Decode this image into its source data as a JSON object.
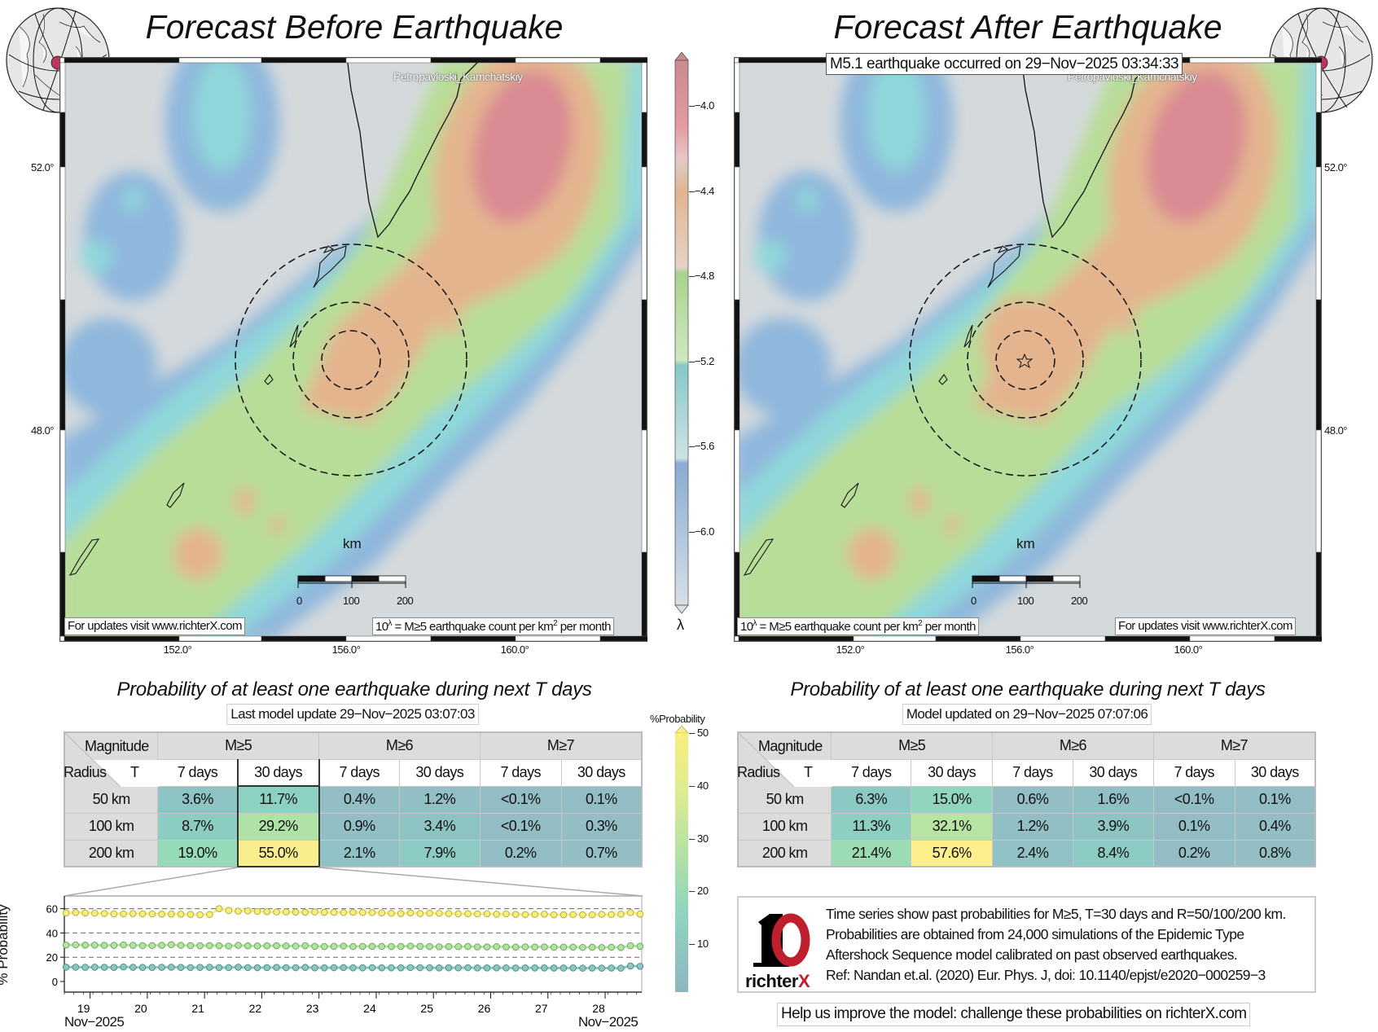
{
  "left_panel": {
    "title": "Forecast Before Earthquake",
    "city_label": "Petropavloski_Kamchatskiy",
    "lat_labels": [
      "52.0°",
      "48.0°"
    ],
    "lon_labels": [
      "152.0°",
      "156.0°",
      "160.0°"
    ],
    "scale": {
      "unit": "km",
      "ticks": [
        "0",
        "100",
        "200"
      ]
    },
    "footer": "For updates visit www.richterX.com",
    "legend_note": {
      "base": "10",
      "exp": "λ",
      "mid": " = M≥5 earthquake count per km",
      "sq": "2",
      "end": " per month"
    }
  },
  "right_panel": {
    "title": "Forecast After Earthquake",
    "event_note": "M5.1 earthquake occurred on 29−Nov−2025 03:34:33",
    "city_label": "Petropavloski_Kamchatskiy",
    "lat_labels": [
      "52.0°",
      "48.0°"
    ],
    "lon_labels": [
      "152.0°",
      "156.0°",
      "160.0°"
    ],
    "scale": {
      "unit": "km",
      "ticks": [
        "0",
        "100",
        "200"
      ]
    },
    "footer": "For updates visit www.richterX.com",
    "legend_note": {
      "base": "10",
      "exp": "λ",
      "mid": " = M≥5 earthquake count per km",
      "sq": "2",
      "end": " per month"
    }
  },
  "rate_colorbar": {
    "ticks": [
      "−4.0",
      "−4.4",
      "−4.8",
      "−5.2",
      "−5.6",
      "−6.0"
    ],
    "symbol": "λ"
  },
  "prob_colorbar": {
    "title": "%Probability",
    "ticks": [
      "50",
      "40",
      "30",
      "20",
      "10"
    ]
  },
  "left_table": {
    "title": "Probability of at least one earthquake during next T days",
    "update": "Last model update 29−Nov−2025 03:07:03",
    "corner_magnitude": "Magnitude",
    "corner_radius": "Radius",
    "corner_t": "T",
    "mag_headers": [
      "M≥5",
      "M≥6",
      "M≥7"
    ],
    "day_headers": [
      "7 days",
      "30 days",
      "7 days",
      "30 days",
      "7 days",
      "30 days"
    ],
    "rows": [
      {
        "radius": "50 km",
        "values": [
          "3.6%",
          "11.7%",
          "0.4%",
          "1.2%",
          "<0.1%",
          "0.1%"
        ]
      },
      {
        "radius": "100 km",
        "values": [
          "8.7%",
          "29.2%",
          "0.9%",
          "3.4%",
          "<0.1%",
          "0.3%"
        ]
      },
      {
        "radius": "200 km",
        "values": [
          "19.0%",
          "55.0%",
          "2.1%",
          "7.9%",
          "0.2%",
          "0.7%"
        ]
      }
    ]
  },
  "right_table": {
    "title": "Probability of at least one earthquake during next T days",
    "update": "Model updated on 29−Nov−2025 07:07:06",
    "corner_magnitude": "Magnitude",
    "corner_radius": "Radius",
    "corner_t": "T",
    "mag_headers": [
      "M≥5",
      "M≥6",
      "M≥7"
    ],
    "day_headers": [
      "7 days",
      "30 days",
      "7 days",
      "30 days",
      "7 days",
      "30 days"
    ],
    "rows": [
      {
        "radius": "50 km",
        "values": [
          "6.3%",
          "15.0%",
          "0.6%",
          "1.6%",
          "<0.1%",
          "0.1%"
        ]
      },
      {
        "radius": "100 km",
        "values": [
          "11.3%",
          "32.1%",
          "1.2%",
          "3.9%",
          "0.1%",
          "0.4%"
        ]
      },
      {
        "radius": "200 km",
        "values": [
          "21.4%",
          "57.6%",
          "2.4%",
          "8.4%",
          "0.2%",
          "0.8%"
        ]
      }
    ]
  },
  "chart_data": {
    "type": "line",
    "ylabel": "% Probability",
    "ylim": [
      -8,
      72
    ],
    "xlim": [
      18.55,
      28.64
    ],
    "yticks": [
      "0",
      "20",
      "40",
      "60"
    ],
    "xticks": [
      "19",
      "20",
      "21",
      "22",
      "23",
      "24",
      "25",
      "26",
      "27",
      "28"
    ],
    "month_left": "Nov−2025",
    "month_right": "Nov−2025",
    "grid": true,
    "series": [
      {
        "name": "R=200 km",
        "color": "#f6ee7e",
        "values": [
          56.5,
          56.8,
          56.5,
          56.3,
          56.0,
          55.8,
          55.7,
          56.0,
          55.8,
          55.7,
          55.6,
          55.6,
          55.5,
          55.3,
          55.0,
          55.2,
          60.0,
          58.5,
          58.0,
          58.2,
          57.8,
          57.5,
          57.3,
          57.3,
          57.2,
          57.0,
          57.3,
          57.0,
          57.0,
          56.8,
          57.0,
          56.8,
          56.8,
          56.5,
          56.2,
          56.0,
          56.5,
          56.0,
          56.3,
          56.2,
          56.0,
          55.8,
          55.8,
          55.7,
          55.8,
          55.5,
          55.7,
          55.3,
          55.2,
          55.3,
          55.5,
          55.0,
          55.0,
          55.2,
          55.0,
          55.0,
          55.3,
          55.2,
          55.5,
          56.8,
          55.5
        ]
      },
      {
        "name": "R=100 km",
        "color": "#b4e3a0",
        "values": [
          30.0,
          30.2,
          30.0,
          30.0,
          29.8,
          29.8,
          30.2,
          29.8,
          29.6,
          29.6,
          29.8,
          30.3,
          29.8,
          29.6,
          29.5,
          29.6,
          29.5,
          29.2,
          29.8,
          29.4,
          29.3,
          29.4,
          29.5,
          29.3,
          29.2,
          29.5,
          29.0,
          28.8,
          29.0,
          29.2,
          28.8,
          28.9,
          29.0,
          28.9,
          28.8,
          28.9,
          29.2,
          29.0,
          28.8,
          28.6,
          28.8,
          28.7,
          28.9,
          28.5,
          28.5,
          28.7,
          28.5,
          28.3,
          28.5,
          28.4,
          28.5,
          28.2,
          28.3,
          28.3,
          28.1,
          28.2,
          28.0,
          28.2,
          28.0,
          29.5,
          29.0
        ]
      },
      {
        "name": "R=50 km",
        "color": "#8cc8c0",
        "values": [
          11.8,
          11.8,
          11.7,
          11.8,
          11.7,
          11.6,
          12.0,
          11.7,
          11.6,
          11.6,
          11.7,
          11.8,
          11.6,
          11.5,
          11.6,
          11.7,
          11.5,
          11.5,
          11.8,
          11.5,
          11.4,
          11.5,
          11.6,
          11.4,
          11.4,
          11.6,
          11.3,
          11.3,
          11.4,
          11.5,
          11.3,
          11.3,
          11.4,
          11.3,
          11.3,
          11.3,
          11.5,
          11.4,
          11.3,
          11.2,
          11.3,
          11.3,
          11.4,
          11.2,
          11.2,
          11.3,
          11.2,
          11.1,
          11.2,
          11.2,
          11.2,
          11.1,
          11.1,
          11.2,
          11.0,
          11.1,
          11.0,
          11.1,
          11.0,
          12.8,
          12.5
        ]
      }
    ]
  },
  "info": {
    "logo_text": "richterX",
    "lines": [
      "Time series show past probabilities for M≥5, T=30 days and R=50/100/200 km.",
      "Probabilities are obtained from 24,000 simulations of the Epidemic Type",
      "Aftershock Sequence model calibrated on past observed earthquakes.",
      "Ref: Nandan et.al. (2020) Eur. Phys. J, doi: 10.1140/epjst/e2020−000259−3"
    ]
  },
  "help": "Help us improve the model: challenge these probabilities on richterX.com",
  "colors": {
    "red": "#d98a92",
    "orange": "#e4b48f",
    "green": "#b8dd98",
    "cyan": "#8fd7da",
    "blue": "#8fb7dc",
    "sea": "#d4d9dc",
    "epicenter": "#c0335a"
  }
}
